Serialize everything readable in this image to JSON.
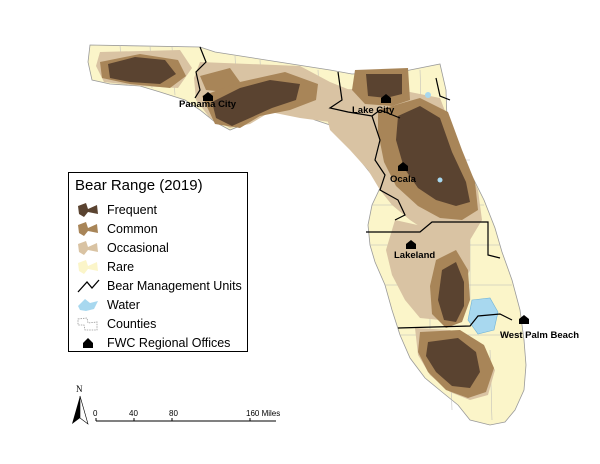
{
  "legend": {
    "title": "Bear Range (2019)",
    "items": [
      {
        "label": "Frequent",
        "color": "#5a4330"
      },
      {
        "label": "Common",
        "color": "#a88558"
      },
      {
        "label": "Occasional",
        "color": "#d9c3a3"
      },
      {
        "label": "Rare",
        "color": "#fbf5c9"
      },
      {
        "label": "Bear Management Units",
        "color": "#000000"
      },
      {
        "label": "Water",
        "color": "#a8d8ef"
      },
      {
        "label": "Counties",
        "color": "#bbbbbb"
      },
      {
        "label": "FWC Regional Offices",
        "color": "#000000"
      }
    ]
  },
  "offices": [
    "Panama City",
    "Lake City",
    "Ocala",
    "Lakeland",
    "West Palm Beach"
  ],
  "scale_bar": {
    "ticks": [
      "0",
      "40",
      "80",
      "160 Miles"
    ]
  },
  "north_arrow": {
    "label": "N"
  }
}
